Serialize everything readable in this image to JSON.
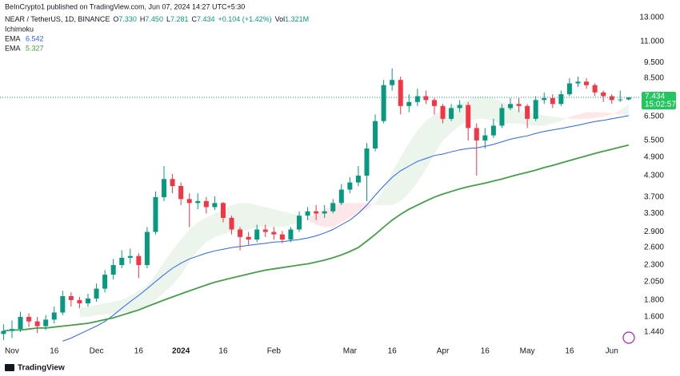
{
  "header": {
    "publisher": "BeInCrypto1 published on TradingView.com, Jun 07, 2024 14:27 UTC+5:30"
  },
  "footer": {
    "brand": "TradingView"
  },
  "chart_data": {
    "type": "candlestick",
    "symbol": "NEAR / TetherUS, 1D, BINANCE",
    "ohlc_legend": [
      {
        "key": "O",
        "text": "7.330"
      },
      {
        "key": "H",
        "text": "7.450"
      },
      {
        "key": "L",
        "text": "7.281"
      },
      {
        "key": "C",
        "text": "7.434"
      }
    ],
    "change": "+0.104 (+1.42%)",
    "volume": {
      "key": "Vol",
      "text": "1.321M"
    },
    "countdown": "15:02:57",
    "up_color": "#089981",
    "down_color": "#f23645",
    "log_scale": true,
    "categories": [
      null,
      "Nov",
      null,
      null,
      null,
      null,
      "16",
      null,
      null,
      null,
      null,
      "Dec",
      null,
      null,
      null,
      null,
      "16",
      null,
      null,
      null,
      null,
      "2024",
      null,
      null,
      null,
      null,
      "16",
      null,
      null,
      null,
      null,
      null,
      "Feb",
      null,
      null,
      null,
      null,
      null,
      null,
      null,
      null,
      "Mar",
      null,
      null,
      null,
      null,
      "16",
      null,
      null,
      null,
      null,
      null,
      "Apr",
      null,
      null,
      null,
      null,
      "16",
      null,
      null,
      null,
      null,
      "May",
      null,
      null,
      null,
      null,
      "16",
      null,
      null,
      null,
      null,
      "Jun",
      null,
      null
    ],
    "open": [
      1.42,
      1.45,
      1.47,
      1.6,
      1.55,
      1.5,
      1.57,
      1.65,
      1.85,
      1.8,
      1.76,
      1.82,
      1.95,
      2.15,
      2.3,
      2.42,
      2.45,
      2.3,
      2.9,
      3.7,
      4.2,
      4.0,
      3.65,
      3.55,
      3.6,
      3.45,
      3.55,
      3.2,
      2.95,
      2.8,
      2.75,
      2.95,
      2.9,
      2.85,
      2.75,
      2.95,
      3.25,
      3.35,
      3.3,
      3.35,
      3.55,
      3.9,
      4.1,
      4.3,
      5.2,
      6.3,
      8.1,
      8.4,
      7.0,
      7.2,
      7.5,
      7.3,
      7.0,
      6.4,
      6.9,
      7.05,
      6.0,
      5.5,
      5.7,
      6.1,
      6.9,
      7.1,
      7.0,
      6.4,
      7.3,
      7.4,
      7.1,
      7.6,
      8.2,
      8.3,
      8.1,
      7.7,
      7.5,
      7.3,
      7.33
    ],
    "high": [
      1.52,
      1.56,
      1.66,
      1.64,
      1.6,
      1.62,
      1.72,
      1.92,
      1.9,
      1.84,
      1.88,
      2.02,
      2.22,
      2.4,
      2.55,
      2.58,
      2.5,
      3.0,
      3.85,
      4.6,
      4.35,
      4.1,
      3.8,
      3.8,
      3.7,
      3.72,
      3.58,
      3.25,
      3.0,
      2.9,
      3.05,
      3.05,
      3.0,
      2.92,
      3.0,
      3.35,
      3.45,
      3.5,
      3.5,
      3.65,
      4.05,
      4.25,
      4.6,
      5.4,
      6.6,
      8.4,
      9.1,
      8.6,
      7.6,
      7.9,
      7.8,
      7.4,
      7.1,
      7.1,
      7.3,
      7.2,
      6.2,
      6.0,
      6.4,
      7.1,
      7.4,
      7.4,
      7.1,
      7.5,
      7.7,
      7.6,
      7.8,
      8.5,
      8.6,
      8.5,
      8.2,
      7.8,
      7.6,
      7.8,
      7.45
    ],
    "low": [
      1.36,
      1.38,
      1.44,
      1.49,
      1.43,
      1.46,
      1.53,
      1.62,
      1.72,
      1.7,
      1.72,
      1.78,
      1.9,
      2.08,
      2.25,
      2.32,
      2.1,
      2.25,
      2.85,
      3.6,
      3.8,
      3.5,
      3.0,
      3.4,
      3.3,
      3.38,
      3.1,
      2.85,
      2.55,
      2.65,
      2.7,
      2.8,
      2.75,
      2.68,
      2.7,
      2.9,
      3.15,
      3.15,
      3.2,
      3.3,
      3.5,
      3.8,
      4.0,
      3.6,
      5.1,
      6.2,
      7.8,
      6.6,
      6.7,
      7.0,
      7.1,
      6.6,
      6.2,
      6.3,
      6.7,
      5.5,
      4.3,
      5.2,
      5.6,
      6.0,
      6.8,
      6.7,
      6.0,
      6.3,
      7.1,
      6.9,
      7.0,
      7.5,
      8.0,
      7.9,
      7.5,
      7.2,
      7.1,
      7.2,
      7.281
    ],
    "close": [
      1.45,
      1.47,
      1.6,
      1.55,
      1.5,
      1.57,
      1.65,
      1.85,
      1.8,
      1.76,
      1.82,
      1.95,
      2.15,
      2.3,
      2.42,
      2.45,
      2.3,
      2.9,
      3.7,
      4.2,
      4.0,
      3.65,
      3.55,
      3.6,
      3.45,
      3.55,
      3.2,
      2.95,
      2.8,
      2.75,
      2.95,
      2.9,
      2.85,
      2.75,
      2.95,
      3.25,
      3.35,
      3.3,
      3.35,
      3.55,
      3.9,
      4.1,
      4.3,
      5.2,
      6.3,
      8.1,
      8.4,
      7.0,
      7.2,
      7.5,
      7.3,
      7.0,
      6.4,
      6.9,
      7.05,
      6.0,
      5.5,
      5.7,
      6.1,
      6.9,
      7.1,
      7.0,
      6.4,
      7.3,
      7.4,
      7.1,
      7.6,
      8.2,
      8.3,
      8.1,
      7.7,
      7.5,
      7.3,
      7.33,
      7.434
    ],
    "series": [
      {
        "name": "EMA",
        "color": "#2962ff",
        "values": [
          null,
          null,
          null,
          null,
          null,
          null,
          null,
          1.35,
          1.38,
          1.42,
          1.46,
          1.5,
          1.55,
          1.62,
          1.7,
          1.78,
          1.86,
          1.95,
          2.05,
          2.15,
          2.25,
          2.33,
          2.4,
          2.45,
          2.5,
          2.54,
          2.57,
          2.6,
          2.62,
          2.64,
          2.66,
          2.68,
          2.7,
          2.71,
          2.73,
          2.75,
          2.78,
          2.82,
          2.88,
          2.95,
          3.05,
          3.15,
          3.3,
          3.5,
          3.75,
          4.0,
          4.25,
          4.45,
          4.6,
          4.75,
          4.85,
          4.95,
          5.0,
          5.08,
          5.15,
          5.2,
          5.22,
          5.28,
          5.35,
          5.45,
          5.55,
          5.62,
          5.68,
          5.78,
          5.86,
          5.92,
          5.98,
          6.05,
          6.12,
          6.2,
          6.28,
          6.33,
          6.4,
          6.47,
          6.542
        ]
      },
      {
        "name": "EMA",
        "color": "#43a047",
        "values": [
          1.45,
          1.46,
          1.46,
          1.47,
          1.48,
          1.48,
          1.49,
          1.5,
          1.51,
          1.52,
          1.53,
          1.55,
          1.57,
          1.59,
          1.62,
          1.65,
          1.68,
          1.72,
          1.76,
          1.8,
          1.84,
          1.88,
          1.92,
          1.96,
          2.0,
          2.04,
          2.07,
          2.1,
          2.13,
          2.16,
          2.19,
          2.22,
          2.24,
          2.26,
          2.28,
          2.3,
          2.32,
          2.35,
          2.38,
          2.42,
          2.47,
          2.53,
          2.6,
          2.72,
          2.85,
          3.0,
          3.15,
          3.28,
          3.4,
          3.5,
          3.6,
          3.7,
          3.78,
          3.85,
          3.92,
          3.98,
          4.03,
          4.08,
          4.14,
          4.2,
          4.27,
          4.34,
          4.4,
          4.47,
          4.55,
          4.62,
          4.7,
          4.78,
          4.86,
          4.94,
          5.02,
          5.1,
          5.17,
          5.25,
          5.327
        ]
      }
    ],
    "ichimoku": {
      "name": "Ichimoku",
      "bull_color": "rgba(67,160,71,0.10)",
      "bear_color": "rgba(242,54,69,0.12)",
      "span_a": [
        null,
        null,
        null,
        null,
        null,
        null,
        null,
        null,
        null,
        1.7,
        1.72,
        1.74,
        1.76,
        1.78,
        1.8,
        1.85,
        1.92,
        2.0,
        2.15,
        2.35,
        2.55,
        2.75,
        2.95,
        3.1,
        3.2,
        3.3,
        3.4,
        3.5,
        3.55,
        3.55,
        3.5,
        3.45,
        3.4,
        3.35,
        3.3,
        3.25,
        3.15,
        3.05,
        3.0,
        3.0,
        3.1,
        3.2,
        3.3,
        3.4,
        3.55,
        3.9,
        4.4,
        4.9,
        5.4,
        5.9,
        6.3,
        6.6,
        6.8,
        7.0,
        7.1,
        7.3,
        7.5,
        7.5,
        7.4,
        7.2,
        7.0,
        6.8,
        6.7,
        6.6,
        6.55,
        6.5,
        6.45,
        6.4,
        6.4,
        6.4,
        6.45,
        6.5,
        6.6,
        6.8,
        7.1
      ],
      "span_b": [
        null,
        null,
        null,
        null,
        null,
        null,
        null,
        null,
        null,
        1.6,
        1.6,
        1.62,
        1.63,
        1.64,
        1.65,
        1.66,
        1.68,
        1.72,
        1.8,
        1.9,
        2.0,
        2.15,
        2.35,
        2.55,
        2.7,
        2.8,
        2.85,
        2.9,
        2.9,
        2.95,
        3.0,
        3.0,
        3.0,
        3.0,
        3.05,
        3.1,
        3.2,
        3.3,
        3.4,
        3.5,
        3.55,
        3.55,
        3.55,
        3.55,
        3.5,
        3.5,
        3.5,
        3.6,
        3.8,
        4.1,
        4.5,
        5.0,
        5.5,
        5.8,
        6.1,
        6.3,
        6.4,
        6.4,
        6.3,
        6.2,
        6.2,
        6.2,
        6.1,
        6.1,
        6.1,
        6.2,
        6.3,
        6.5,
        6.6,
        6.7,
        6.7,
        6.7,
        6.65,
        6.6,
        6.55
      ]
    },
    "ylim": [
      1.21,
      14.7
    ],
    "yticks": [
      {
        "value": 13,
        "label": "13.000"
      },
      {
        "value": 11,
        "label": "11.000"
      },
      {
        "value": 9.5,
        "label": "9.500"
      },
      {
        "value": 8.5,
        "label": "8.500"
      },
      {
        "value": 6.5,
        "label": "6.500"
      },
      {
        "value": 5.5,
        "label": "5.500"
      },
      {
        "value": 4.9,
        "label": "4.900"
      },
      {
        "value": 4.3,
        "label": "4.300"
      },
      {
        "value": 3.7,
        "label": "3.700"
      },
      {
        "value": 3.3,
        "label": "3.300"
      },
      {
        "value": 2.9,
        "label": "2.900"
      },
      {
        "value": 2.6,
        "label": "2.600"
      },
      {
        "value": 2.3,
        "label": "2.300"
      },
      {
        "value": 2.05,
        "label": "2.050"
      },
      {
        "value": 1.8,
        "label": "1.800"
      },
      {
        "value": 1.6,
        "label": "1.600"
      },
      {
        "value": 1.44,
        "label": "1.440"
      }
    ]
  }
}
